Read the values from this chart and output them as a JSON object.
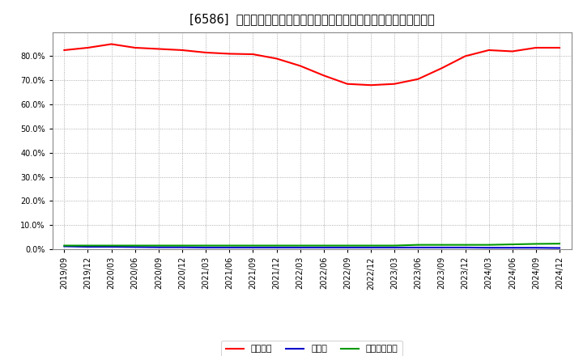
{
  "title": "[6586]  自己資本、のれん、繰延税金資産の総資産に対する比率の推移",
  "x_labels": [
    "2019/09",
    "2019/12",
    "2020/03",
    "2020/06",
    "2020/09",
    "2020/12",
    "2021/03",
    "2021/06",
    "2021/09",
    "2021/12",
    "2022/03",
    "2022/06",
    "2022/09",
    "2022/12",
    "2023/03",
    "2023/06",
    "2023/09",
    "2023/12",
    "2024/03",
    "2024/06",
    "2024/09",
    "2024/12"
  ],
  "jikoshihon": [
    82.5,
    83.5,
    85.0,
    83.5,
    83.0,
    82.5,
    81.5,
    81.0,
    80.8,
    79.0,
    76.0,
    72.0,
    68.5,
    68.0,
    68.5,
    70.5,
    75.0,
    80.0,
    82.5,
    82.0,
    83.5,
    83.5
  ],
  "noren": [
    1.2,
    1.0,
    1.0,
    0.9,
    0.8,
    0.8,
    0.7,
    0.7,
    0.7,
    0.7,
    0.7,
    0.7,
    0.7,
    0.7,
    0.7,
    0.7,
    0.7,
    0.7,
    0.6,
    0.6,
    0.6,
    0.5
  ],
  "kurinobe": [
    1.5,
    1.5,
    1.5,
    1.5,
    1.5,
    1.5,
    1.5,
    1.5,
    1.5,
    1.5,
    1.5,
    1.5,
    1.5,
    1.5,
    1.5,
    1.8,
    1.8,
    1.8,
    1.8,
    2.0,
    2.2,
    2.3
  ],
  "color_jikoshihon": "#ff0000",
  "color_noren": "#0000cc",
  "color_kurinobe": "#009900",
  "legend_label_jikoshihon": "自己資本",
  "legend_label_noren": "のれん",
  "legend_label_kurinobe": "繰延税金資産",
  "ylim": [
    0,
    90
  ],
  "yticks": [
    0,
    10,
    20,
    30,
    40,
    50,
    60,
    70,
    80
  ],
  "background_color": "#ffffff",
  "plot_bg_color": "#ffffff",
  "grid_color": "#999999",
  "title_fontsize": 10.5,
  "tick_fontsize": 7,
  "legend_fontsize": 8
}
